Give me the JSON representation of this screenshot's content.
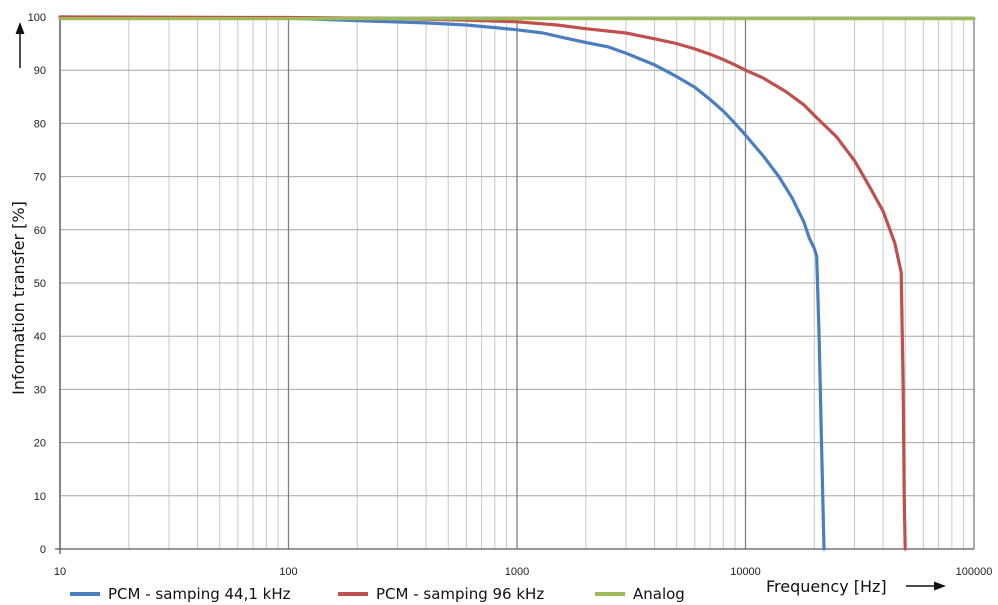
{
  "chart_data": {
    "type": "line",
    "xlabel": "Frequency [Hz]",
    "ylabel": "Information transfer [%]",
    "x_scale": "log",
    "xlim": [
      10,
      100000
    ],
    "ylim": [
      0,
      100
    ],
    "x_ticks": [
      "10",
      "100",
      "1000",
      "10000",
      "100000"
    ],
    "y_ticks": [
      "0",
      "10",
      "20",
      "30",
      "40",
      "50",
      "60",
      "70",
      "80",
      "90",
      "100"
    ],
    "grid": true,
    "legend_position": "bottom",
    "series": [
      {
        "name": "PCM - samping 44,1 kHz",
        "color": "#4a7ebf",
        "points": [
          [
            10,
            100
          ],
          [
            100,
            99.8
          ],
          [
            200,
            99.3
          ],
          [
            400,
            98.9
          ],
          [
            600,
            98.5
          ],
          [
            800,
            98
          ],
          [
            1000,
            97.6
          ],
          [
            1300,
            97
          ],
          [
            1600,
            96.1
          ],
          [
            2000,
            95.2
          ],
          [
            2500,
            94.4
          ],
          [
            3000,
            93.2
          ],
          [
            4000,
            91
          ],
          [
            5000,
            88.8
          ],
          [
            6000,
            86.8
          ],
          [
            7000,
            84.5
          ],
          [
            8000,
            82.3
          ],
          [
            9000,
            80
          ],
          [
            10000,
            77.8
          ],
          [
            12000,
            73.8
          ],
          [
            14000,
            70
          ],
          [
            16000,
            66
          ],
          [
            18000,
            61.5
          ],
          [
            19000,
            58.5
          ],
          [
            20000,
            56.5
          ],
          [
            20500,
            55
          ],
          [
            21000,
            40
          ],
          [
            21500,
            20
          ],
          [
            22050,
            0
          ]
        ]
      },
      {
        "name": "PCM - samping 96 kHz",
        "color": "#c0504d",
        "points": [
          [
            10,
            100
          ],
          [
            100,
            99.9
          ],
          [
            300,
            99.7
          ],
          [
            600,
            99.4
          ],
          [
            1000,
            99.1
          ],
          [
            1500,
            98.5
          ],
          [
            2000,
            97.8
          ],
          [
            3000,
            97
          ],
          [
            4000,
            95.9
          ],
          [
            5000,
            95
          ],
          [
            6000,
            94
          ],
          [
            7000,
            93
          ],
          [
            8000,
            92
          ],
          [
            9000,
            91
          ],
          [
            10000,
            90
          ],
          [
            12000,
            88.5
          ],
          [
            15000,
            86
          ],
          [
            18000,
            83.5
          ],
          [
            20000,
            81.5
          ],
          [
            22000,
            79.8
          ],
          [
            25000,
            77.5
          ],
          [
            30000,
            73
          ],
          [
            35000,
            68
          ],
          [
            40000,
            63.5
          ],
          [
            45000,
            57.5
          ],
          [
            48000,
            52
          ],
          [
            49000,
            30
          ],
          [
            49500,
            10
          ],
          [
            50000,
            0
          ]
        ]
      },
      {
        "name": "Analog",
        "color": "#9bbb59",
        "points": [
          [
            10,
            99.7
          ],
          [
            100000,
            99.7
          ]
        ]
      }
    ]
  }
}
